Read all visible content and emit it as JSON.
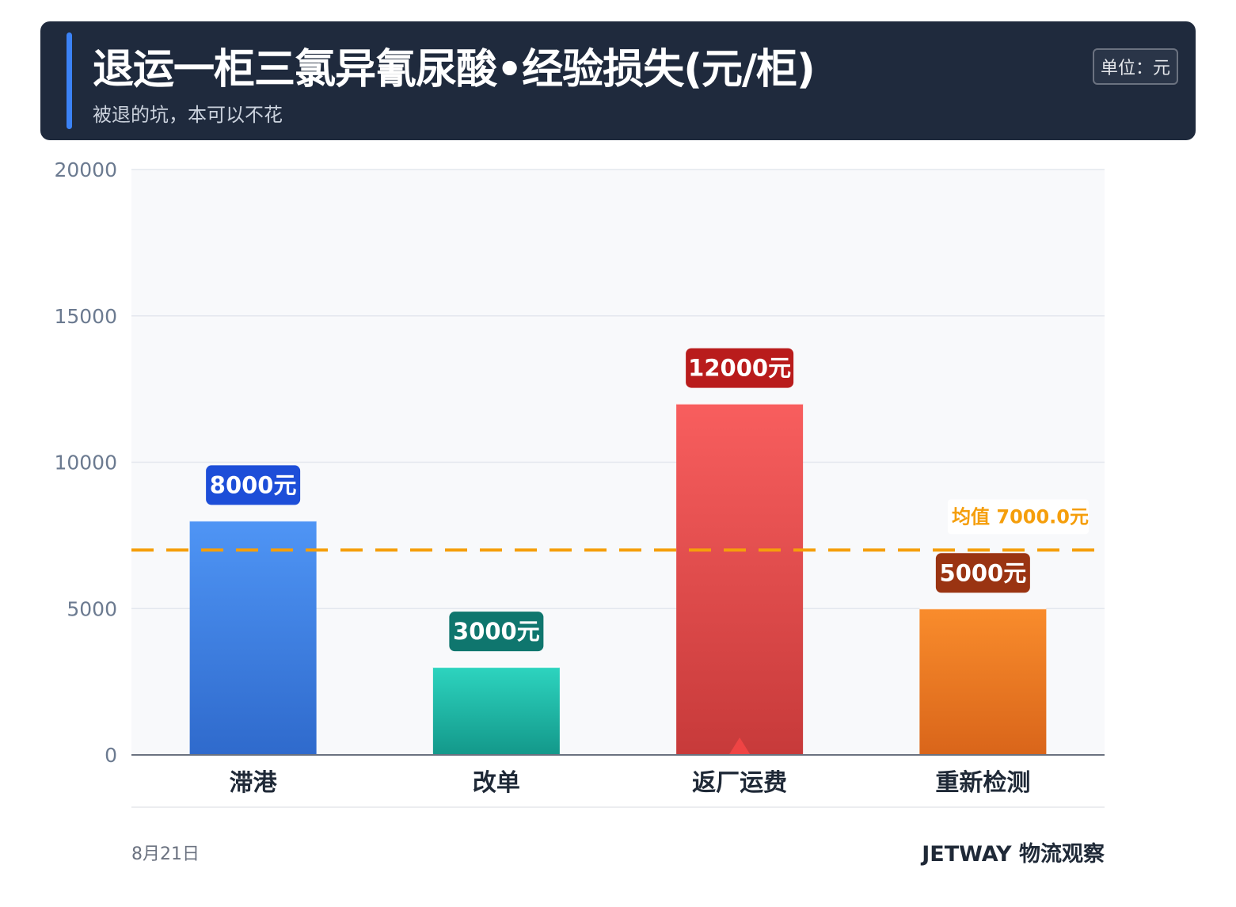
{
  "header": {
    "title": "退运一柜三氯异氰尿酸•经验损失(元/柜)",
    "subtitle": "被退的坑，本可以不花",
    "unit_badge": "单位：元"
  },
  "footer": {
    "date": "8月21日",
    "brand": "JETWAY 物流观察"
  },
  "colors": {
    "header_bg": "#1f2a3d",
    "accent": "#3b82f6",
    "mean_line": "#f59e0b",
    "plot_bg": "#f8f9fb"
  },
  "chart_data": {
    "type": "bar",
    "categories": [
      "滞港",
      "改单",
      "返厂运费",
      "重新检测"
    ],
    "values": [
      8000,
      3000,
      12000,
      5000
    ],
    "value_labels": [
      "8000元",
      "3000元",
      "12000元",
      "5000元"
    ],
    "bar_colors_top": [
      "#4f95f5",
      "#2dd4bf",
      "#f85e5e",
      "#f98c2c"
    ],
    "bar_colors_bottom": [
      "#2f6acc",
      "#13988a",
      "#c73a3a",
      "#d9651a"
    ],
    "label_colors": [
      "#1d4ed8",
      "#0f766e",
      "#b91c1c",
      "#9a3412"
    ],
    "ylim": [
      0,
      20000
    ],
    "yticks": [
      0,
      5000,
      10000,
      15000,
      20000
    ],
    "grid": true,
    "mean": {
      "value": 7000,
      "label": "均值 7000.0元"
    },
    "highlight_marker": {
      "category": "返厂运费",
      "color": "#ef4444"
    }
  }
}
